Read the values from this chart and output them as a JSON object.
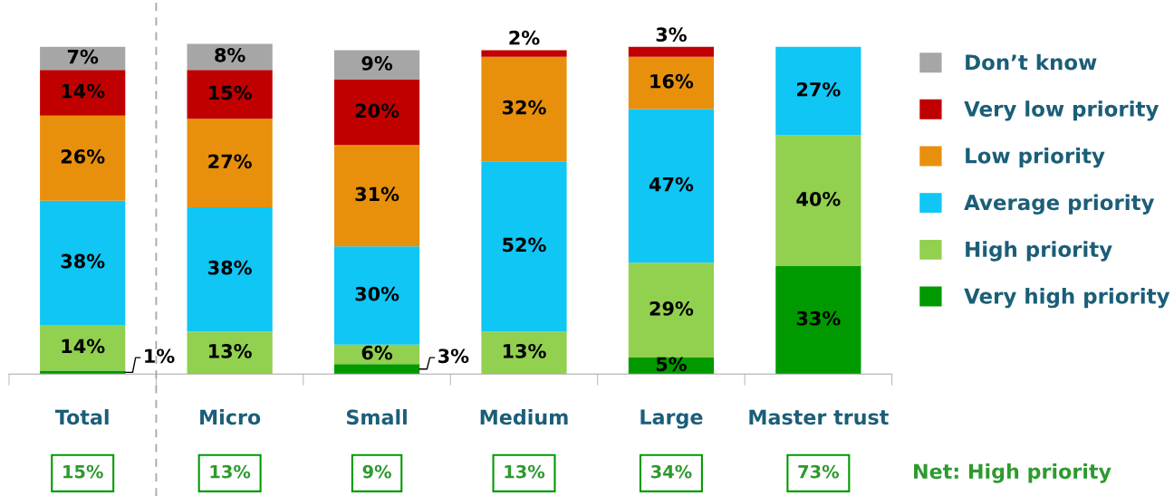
{
  "chart_data": {
    "type": "bar",
    "stacked": true,
    "data_labels": true,
    "legend": "right",
    "grid": false,
    "categories": [
      "Total",
      "Micro",
      "Small",
      "Medium",
      "Large",
      "Master trust"
    ],
    "series": [
      {
        "name": "Very high priority",
        "color": "#009a00",
        "values": [
          1,
          0,
          3,
          0,
          5,
          33
        ],
        "value_labels": [
          "1%",
          null,
          "3%",
          null,
          "5%",
          "33%"
        ]
      },
      {
        "name": "High priority",
        "color": "#92d050",
        "values": [
          14,
          13,
          6,
          13,
          29,
          40
        ],
        "value_labels": [
          "14%",
          "13%",
          "6%",
          "13%",
          "29%",
          "40%"
        ]
      },
      {
        "name": "Average priority",
        "color": "#0fc6f5",
        "values": [
          38,
          38,
          30,
          52,
          47,
          27
        ],
        "value_labels": [
          "38%",
          "38%",
          "30%",
          "52%",
          "47%",
          "27%"
        ]
      },
      {
        "name": "Low priority",
        "color": "#e8900c",
        "values": [
          26,
          27,
          31,
          32,
          16,
          0
        ],
        "value_labels": [
          "26%",
          "27%",
          "31%",
          "32%",
          "16%",
          null
        ]
      },
      {
        "name": "Very low priority",
        "color": "#c00000",
        "values": [
          14,
          15,
          20,
          2,
          3,
          0
        ],
        "value_labels": [
          "14%",
          "15%",
          "20%",
          "2%",
          "3%",
          null
        ]
      },
      {
        "name": "Don’t know",
        "color": "#a6a6a6",
        "values": [
          7,
          8,
          9,
          0,
          0,
          0
        ],
        "value_labels": [
          "7%",
          "8%",
          "9%",
          null,
          null,
          null
        ]
      }
    ],
    "annotations": [
      "15%",
      "13%",
      "9%",
      "13%",
      "34%",
      "73%",
      "Net: High priority"
    ]
  }
}
